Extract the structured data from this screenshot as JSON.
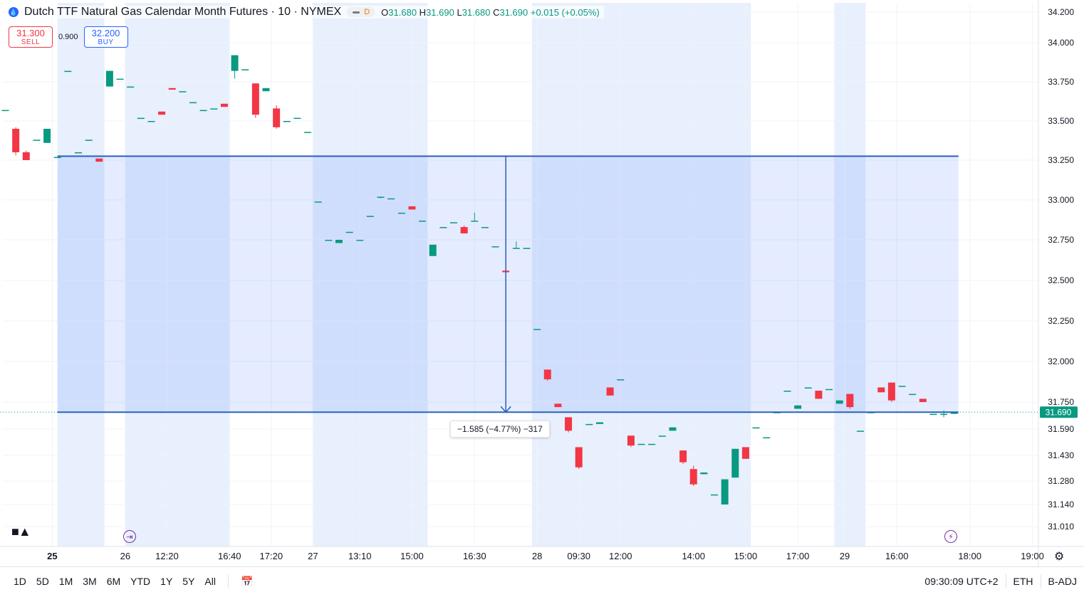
{
  "legend": {
    "title": "Dutch TTF Natural Gas Calendar Month Futures · 10 · NYMEX",
    "badge": "D",
    "o_label": "O",
    "o_value": "31.680",
    "h_label": "H",
    "h_value": "31.690",
    "l_label": "L",
    "l_value": "31.680",
    "c_label": "C",
    "c_value": "31.690",
    "change": "+0.015 (+0.05%)"
  },
  "trade": {
    "sell_price": "31.300",
    "sell_label": "SELL",
    "spread": "0.900",
    "buy_price": "32.200",
    "buy_label": "BUY"
  },
  "measure": {
    "label": "−1.585 (−4.77%) −317"
  },
  "toolbar": {
    "timeframes": [
      "1D",
      "5D",
      "1M",
      "3M",
      "6M",
      "YTD",
      "1Y",
      "5Y",
      "All"
    ],
    "clock": "09:30:09 UTC+2",
    "session": "ETH",
    "adjust": "B-ADJ"
  },
  "icons": {
    "logo": "tradingview-logo-icon",
    "calendar": "calendar-range-icon",
    "settings": "gear-icon",
    "session_break": "session-break-icon",
    "lightning": "lightning-event-icon"
  },
  "colors": {
    "up": "#089981",
    "down": "#f23645",
    "measure": "#2962ff",
    "session_shade": "#e8effd",
    "current_price_bg": "#089981"
  },
  "chart_data": {
    "type": "candlestick",
    "title": "Dutch TTF Natural Gas Calendar Month Futures · 10 · NYMEX",
    "y_axis": {
      "ticks": [
        {
          "label": "34.200",
          "value": 34.2
        },
        {
          "label": "34.000",
          "value": 34.0
        },
        {
          "label": "33.750",
          "value": 33.75
        },
        {
          "label": "33.500",
          "value": 33.5
        },
        {
          "label": "33.250",
          "value": 33.25
        },
        {
          "label": "33.000",
          "value": 33.0
        },
        {
          "label": "32.750",
          "value": 32.75
        },
        {
          "label": "32.500",
          "value": 32.5
        },
        {
          "label": "32.250",
          "value": 32.25
        },
        {
          "label": "32.000",
          "value": 32.0
        },
        {
          "label": "31.750",
          "value": 31.75
        },
        {
          "label": "31.590",
          "value": 31.59
        },
        {
          "label": "31.430",
          "value": 31.43
        },
        {
          "label": "31.280",
          "value": 31.28
        },
        {
          "label": "31.140",
          "value": 31.14
        },
        {
          "label": "31.010",
          "value": 31.01
        }
      ],
      "current_price": "31.690"
    },
    "x_axis": {
      "ticks": [
        {
          "label": "25",
          "index": 4.5,
          "bold": true
        },
        {
          "label": "26",
          "index": 11.5,
          "bold": false
        },
        {
          "label": "12:20",
          "index": 15.5,
          "bold": false
        },
        {
          "label": "16:40",
          "index": 21.5,
          "bold": false
        },
        {
          "label": "17:20",
          "index": 25.5,
          "bold": false
        },
        {
          "label": "27",
          "index": 29.5,
          "bold": false
        },
        {
          "label": "13:10",
          "index": 34,
          "bold": false
        },
        {
          "label": "15:00",
          "index": 39,
          "bold": false
        },
        {
          "label": "16:30",
          "index": 45,
          "bold": false
        },
        {
          "label": "28",
          "index": 51,
          "bold": false
        },
        {
          "label": "09:30",
          "index": 55,
          "bold": false
        },
        {
          "label": "12:00",
          "index": 59,
          "bold": false
        },
        {
          "label": "14:00",
          "index": 66,
          "bold": false
        },
        {
          "label": "15:00",
          "index": 71,
          "bold": false
        },
        {
          "label": "17:00",
          "index": 76,
          "bold": false
        },
        {
          "label": "29",
          "index": 80.5,
          "bold": false
        },
        {
          "label": "16:00",
          "index": 85.5,
          "bold": false
        },
        {
          "label": "18:00",
          "index": 92.5,
          "bold": false
        },
        {
          "label": "19:00",
          "index": 98.5,
          "bold": false
        }
      ]
    },
    "session_shades": [
      [
        5,
        9.5
      ],
      [
        11.5,
        21.5
      ],
      [
        29.5,
        40.5
      ],
      [
        50.5,
        71.5
      ],
      [
        79.5,
        82.5
      ]
    ],
    "candles": [
      [
        0,
        33.57,
        33.57,
        33.57,
        33.57
      ],
      [
        1,
        33.45,
        33.46,
        33.28,
        33.3
      ],
      [
        2,
        33.3,
        33.31,
        33.25,
        33.25
      ],
      [
        3,
        33.38,
        33.38,
        33.38,
        33.38
      ],
      [
        4,
        33.36,
        33.45,
        33.36,
        33.45
      ],
      [
        5,
        33.27,
        33.27,
        33.27,
        33.27
      ],
      [
        6,
        33.82,
        33.82,
        33.82,
        33.82
      ],
      [
        7,
        33.3,
        33.3,
        33.3,
        33.3
      ],
      [
        8,
        33.38,
        33.38,
        33.38,
        33.38
      ],
      [
        9,
        33.26,
        33.26,
        33.24,
        33.24
      ],
      [
        10,
        33.72,
        33.82,
        33.72,
        33.82
      ],
      [
        11,
        33.77,
        33.77,
        33.77,
        33.77
      ],
      [
        12,
        33.72,
        33.72,
        33.72,
        33.72
      ],
      [
        13,
        33.52,
        33.52,
        33.52,
        33.52
      ],
      [
        14,
        33.5,
        33.5,
        33.5,
        33.5
      ],
      [
        15,
        33.56,
        33.56,
        33.54,
        33.54
      ],
      [
        16,
        33.71,
        33.71,
        33.7,
        33.7
      ],
      [
        17,
        33.69,
        33.69,
        33.69,
        33.69
      ],
      [
        18,
        33.62,
        33.62,
        33.62,
        33.62
      ],
      [
        19,
        33.57,
        33.57,
        33.57,
        33.57
      ],
      [
        20,
        33.58,
        33.58,
        33.58,
        33.58
      ],
      [
        21,
        33.61,
        33.61,
        33.59,
        33.59
      ],
      [
        22,
        33.82,
        33.92,
        33.77,
        33.92
      ],
      [
        23,
        33.83,
        33.83,
        33.83,
        33.83
      ],
      [
        24,
        33.74,
        33.74,
        33.52,
        33.54
      ],
      [
        25,
        33.69,
        33.71,
        33.69,
        33.71
      ],
      [
        26,
        33.58,
        33.6,
        33.45,
        33.46
      ],
      [
        27,
        33.5,
        33.5,
        33.5,
        33.5
      ],
      [
        28,
        33.52,
        33.52,
        33.52,
        33.52
      ],
      [
        29,
        33.43,
        33.43,
        33.43,
        33.43
      ],
      [
        30,
        32.99,
        32.99,
        32.99,
        32.99
      ],
      [
        31,
        32.75,
        32.75,
        32.75,
        32.75
      ],
      [
        32,
        32.73,
        32.75,
        32.73,
        32.75
      ],
      [
        33,
        32.8,
        32.8,
        32.8,
        32.8
      ],
      [
        34,
        32.75,
        32.75,
        32.75,
        32.75
      ],
      [
        35,
        32.9,
        32.9,
        32.9,
        32.9
      ],
      [
        36,
        33.02,
        33.02,
        33.01,
        33.02
      ],
      [
        37,
        33.01,
        33.01,
        33.01,
        33.01
      ],
      [
        38,
        32.92,
        32.92,
        32.92,
        32.92
      ],
      [
        39,
        32.96,
        32.96,
        32.94,
        32.94
      ],
      [
        40,
        32.87,
        32.87,
        32.87,
        32.87
      ],
      [
        41,
        32.65,
        32.72,
        32.65,
        32.72
      ],
      [
        42,
        32.83,
        32.83,
        32.83,
        32.83
      ],
      [
        43,
        32.86,
        32.86,
        32.86,
        32.86
      ],
      [
        44,
        32.83,
        32.84,
        32.79,
        32.79
      ],
      [
        45,
        32.87,
        32.92,
        32.87,
        32.87
      ],
      [
        46,
        32.83,
        32.83,
        32.83,
        32.83
      ],
      [
        47,
        32.71,
        32.71,
        32.71,
        32.71
      ],
      [
        48,
        32.56,
        32.56,
        32.43,
        32.55
      ],
      [
        49,
        32.7,
        32.74,
        32.7,
        32.7
      ],
      [
        50,
        32.7,
        32.7,
        32.7,
        32.7
      ],
      [
        51,
        32.2,
        32.2,
        32.2,
        32.2
      ],
      [
        52,
        31.95,
        31.95,
        31.88,
        31.89
      ],
      [
        53,
        31.74,
        31.74,
        31.72,
        31.72
      ],
      [
        54,
        31.66,
        31.66,
        31.57,
        31.58
      ],
      [
        55,
        31.48,
        31.48,
        31.35,
        31.36
      ],
      [
        56,
        31.62,
        31.62,
        31.62,
        31.62
      ],
      [
        57,
        31.62,
        31.63,
        31.62,
        31.63
      ],
      [
        58,
        31.84,
        31.84,
        31.79,
        31.79
      ],
      [
        59,
        31.89,
        31.89,
        31.89,
        31.89
      ],
      [
        60,
        31.55,
        31.55,
        31.48,
        31.49
      ],
      [
        61,
        31.5,
        31.5,
        31.5,
        31.5
      ],
      [
        62,
        31.5,
        31.5,
        31.5,
        31.5
      ],
      [
        63,
        31.55,
        31.55,
        31.55,
        31.55
      ],
      [
        64,
        31.58,
        31.6,
        31.58,
        31.6
      ],
      [
        65,
        31.46,
        31.46,
        31.38,
        31.39
      ],
      [
        66,
        31.35,
        31.37,
        31.25,
        31.26
      ],
      [
        67,
        31.32,
        31.33,
        31.32,
        31.33
      ],
      [
        68,
        31.2,
        31.2,
        31.2,
        31.2
      ],
      [
        69,
        31.14,
        31.29,
        31.14,
        31.29
      ],
      [
        70,
        31.3,
        31.47,
        31.3,
        31.47
      ],
      [
        71,
        31.48,
        31.48,
        31.41,
        31.41
      ],
      [
        72,
        31.6,
        31.6,
        31.6,
        31.6
      ],
      [
        73,
        31.54,
        31.54,
        31.54,
        31.54
      ],
      [
        74,
        31.69,
        31.69,
        31.69,
        31.69
      ],
      [
        75,
        31.82,
        31.82,
        31.82,
        31.82
      ],
      [
        76,
        31.71,
        31.73,
        31.71,
        31.73
      ],
      [
        77,
        31.84,
        31.84,
        31.84,
        31.84
      ],
      [
        78,
        31.82,
        31.82,
        31.77,
        31.77
      ],
      [
        79,
        31.83,
        31.83,
        31.83,
        31.83
      ],
      [
        80,
        31.74,
        31.76,
        31.74,
        31.76
      ],
      [
        81,
        31.8,
        31.8,
        31.71,
        31.72
      ],
      [
        82,
        31.58,
        31.58,
        31.58,
        31.58
      ],
      [
        83,
        31.69,
        31.69,
        31.69,
        31.69
      ],
      [
        84,
        31.84,
        31.84,
        31.81,
        31.81
      ],
      [
        85,
        31.87,
        31.87,
        31.75,
        31.76
      ],
      [
        86,
        31.85,
        31.85,
        31.85,
        31.85
      ],
      [
        87,
        31.8,
        31.8,
        31.8,
        31.8
      ],
      [
        88,
        31.77,
        31.77,
        31.75,
        31.75
      ],
      [
        89,
        31.68,
        31.68,
        31.68,
        31.68
      ],
      [
        90,
        31.68,
        31.7,
        31.66,
        31.68
      ],
      [
        91,
        31.68,
        31.69,
        31.68,
        31.69
      ]
    ],
    "measure_range": {
      "from_price": 33.275,
      "to_price": 31.69,
      "start_index": 5,
      "end_index": 91,
      "arrow_index": 48
    }
  }
}
